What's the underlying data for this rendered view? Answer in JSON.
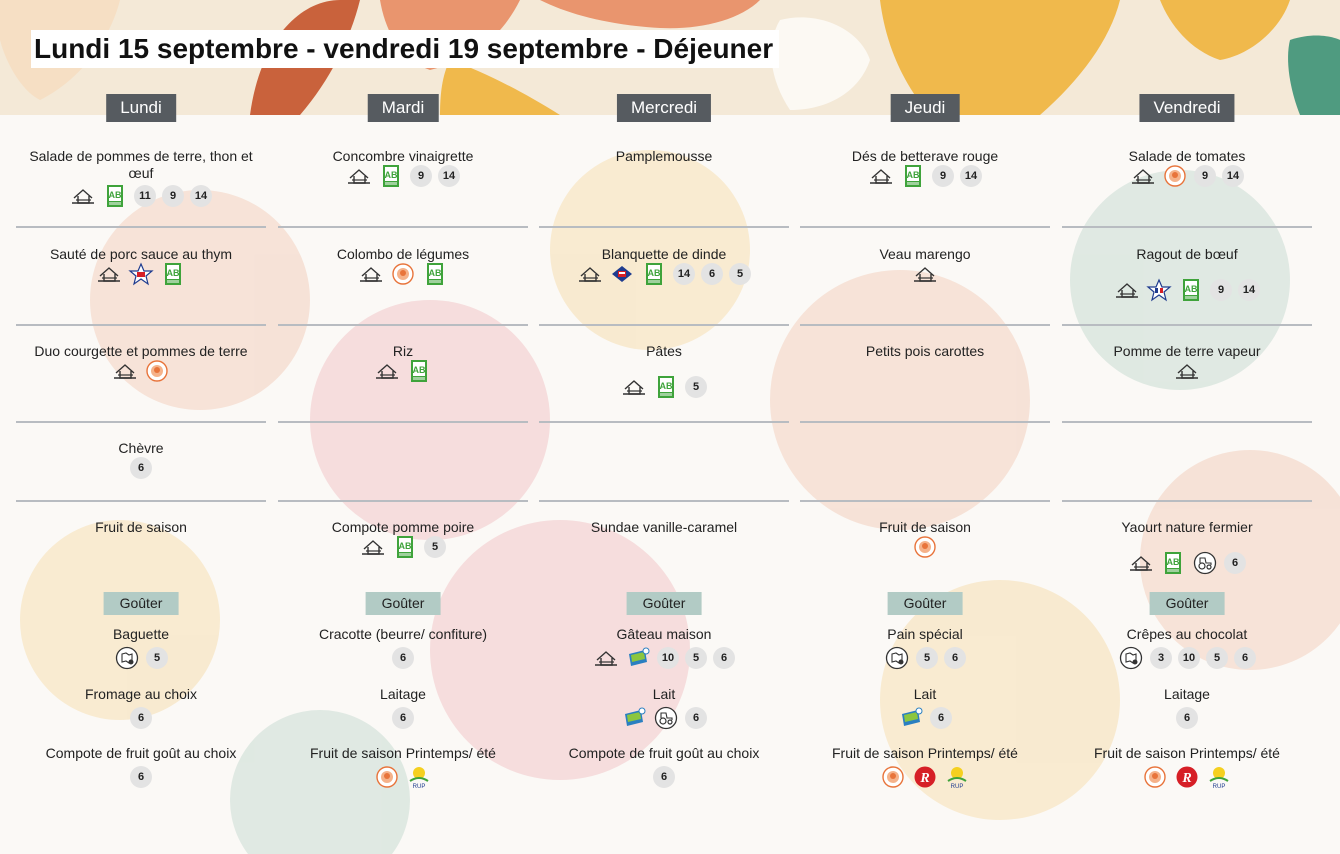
{
  "title": "Lundi 15 septembre - vendredi 19 septembre  - Déjeuner",
  "gouter_label": "Goûter",
  "days": [
    {
      "name": "Lundi",
      "dishes": [
        {
          "text": "Salade de pommes de terre, thon et œuf",
          "badges": [
            "house-icon",
            "ab-icon",
            "11",
            "9",
            "14"
          ]
        },
        {
          "text": "Sauté de porc sauce au thym",
          "badges": [
            "house-icon",
            "france-pork-icon",
            "ab-icon"
          ]
        },
        {
          "text": "Duo courgette et pommes de terre",
          "badges": [
            "house-icon",
            "local-orange-icon"
          ]
        },
        {
          "text": "Chèvre",
          "badges": [
            "6"
          ]
        },
        {
          "text": "Fruit de saison",
          "badges": []
        }
      ],
      "gouter": [
        {
          "text": "Baguette",
          "badges": [
            "map-icon",
            "5"
          ]
        },
        {
          "text": "Fromage au choix",
          "badges": [
            "6"
          ]
        },
        {
          "text": "Compote de fruit goût au choix",
          "badges": [
            "6"
          ]
        }
      ]
    },
    {
      "name": "Mardi",
      "dishes": [
        {
          "text": "Concombre vinaigrette",
          "badges": [
            "house-icon",
            "ab-icon",
            "9",
            "14"
          ]
        },
        {
          "text": "Colombo de légumes",
          "badges": [
            "house-icon",
            "local-orange-icon",
            "ab-icon"
          ]
        },
        {
          "text": "Riz",
          "badges": [
            "house-icon",
            "ab-icon"
          ]
        },
        {
          "text": "",
          "badges": []
        },
        {
          "text": "Compote pomme poire",
          "badges": [
            "house-icon",
            "ab-icon",
            "5"
          ]
        }
      ],
      "gouter": [
        {
          "text": "Cracotte (beurre/ confiture)",
          "badges": [
            "6"
          ]
        },
        {
          "text": "Laitage",
          "badges": [
            "6"
          ]
        },
        {
          "text": "Fruit de saison Printemps/ été",
          "badges": [
            "local-orange-icon",
            "rup-icon"
          ]
        }
      ]
    },
    {
      "name": "Mercredi",
      "dishes": [
        {
          "text": "Pamplemousse",
          "badges": []
        },
        {
          "text": "Blanquette de dinde",
          "badges": [
            "house-icon",
            "france-poultry-icon",
            "ab-icon",
            "14",
            "6",
            "5"
          ]
        },
        {
          "text": "Pâtes",
          "badges": [
            "house-icon",
            "ab-icon",
            "5"
          ]
        },
        {
          "text": "",
          "badges": []
        },
        {
          "text": "Sundae vanille-caramel",
          "badges": []
        }
      ],
      "gouter": [
        {
          "text": "Gâteau maison",
          "badges": [
            "house-icon",
            "eco-icon",
            "10",
            "5",
            "6"
          ]
        },
        {
          "text": "Lait",
          "badges": [
            "eco-icon",
            "tractor-icon",
            "6"
          ]
        },
        {
          "text": "Compote de fruit goût au choix",
          "badges": [
            "6"
          ]
        }
      ]
    },
    {
      "name": "Jeudi",
      "dishes": [
        {
          "text": "Dés de betterave rouge",
          "badges": [
            "house-icon",
            "ab-icon",
            "9",
            "14"
          ]
        },
        {
          "text": "Veau marengo",
          "badges": [
            "house-icon"
          ]
        },
        {
          "text": "Petits pois carottes",
          "badges": []
        },
        {
          "text": "",
          "badges": []
        },
        {
          "text": "Fruit de saison",
          "badges": [
            "local-orange-icon"
          ]
        }
      ],
      "gouter": [
        {
          "text": "Pain spécial",
          "badges": [
            "map-icon",
            "5",
            "6"
          ]
        },
        {
          "text": "Lait",
          "badges": [
            "eco-icon",
            "6"
          ]
        },
        {
          "text": "Fruit de saison Printemps/ été",
          "badges": [
            "local-orange-icon",
            "label-rouge-icon",
            "rup-icon"
          ]
        }
      ]
    },
    {
      "name": "Vendredi",
      "dishes": [
        {
          "text": "Salade de tomates",
          "badges": [
            "house-icon",
            "local-orange-icon",
            "9",
            "14"
          ]
        },
        {
          "text": "Ragout de bœuf",
          "badges": [
            "house-icon",
            "france-beef-icon",
            "ab-icon",
            "9",
            "14"
          ]
        },
        {
          "text": "Pomme de terre vapeur",
          "badges": [
            "house-icon"
          ]
        },
        {
          "text": "",
          "badges": []
        },
        {
          "text": "Yaourt nature fermier",
          "badges": [
            "house-icon",
            "ab-icon",
            "tractor-icon",
            "6"
          ]
        }
      ],
      "gouter": [
        {
          "text": "Crêpes au chocolat",
          "badges": [
            "map-icon",
            "3",
            "10",
            "5",
            "6"
          ]
        },
        {
          "text": "Laitage",
          "badges": [
            "6"
          ]
        },
        {
          "text": "Fruit de saison Printemps/ été",
          "badges": [
            "local-orange-icon",
            "label-rouge-icon",
            "rup-icon"
          ]
        }
      ]
    }
  ],
  "colors": {
    "day_header": "#565b60",
    "gouter_header": "#b2cbc5",
    "separator": "#b8bcc1",
    "ab_green": "#3fa33b",
    "label_rouge": "#d61f26",
    "orange_logo": "#e8743b"
  }
}
